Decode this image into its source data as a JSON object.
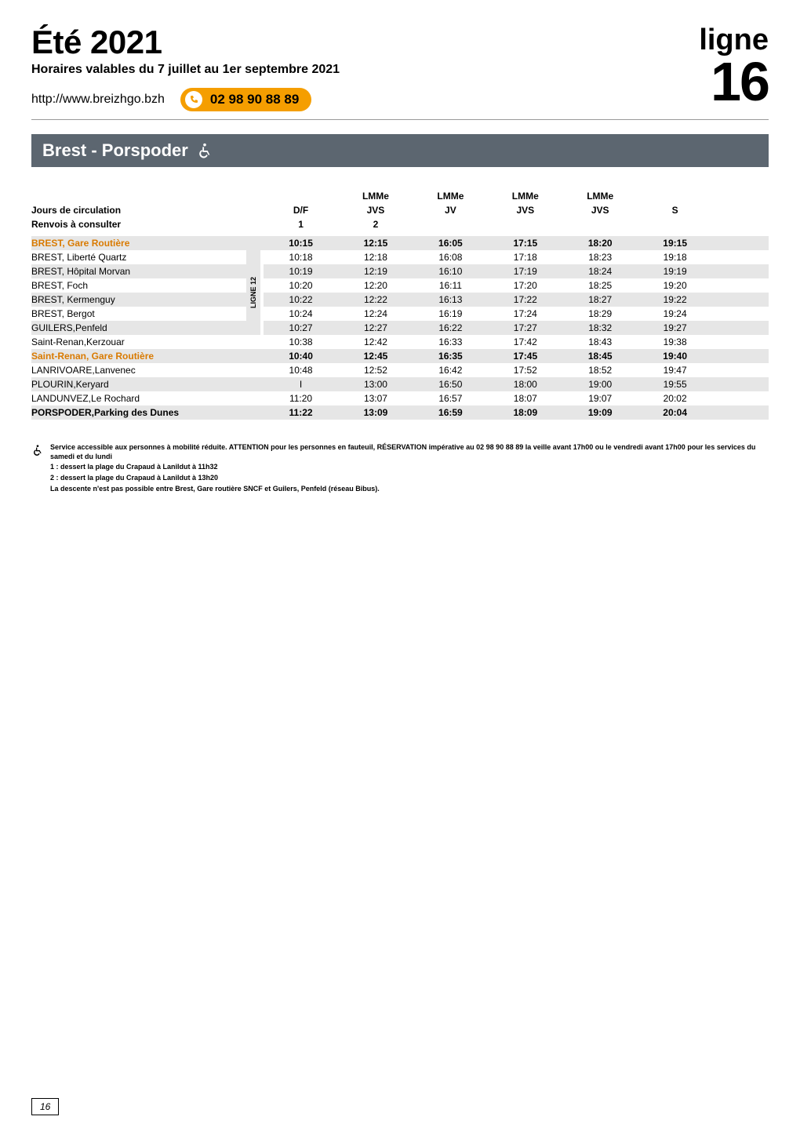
{
  "header": {
    "season": "Été 2021",
    "subtitle": "Horaires valables du 7 juillet au 1er septembre 2021",
    "url": "http://www.breizhgo.bzh",
    "phone": "02 98 90 88 89",
    "ligne_label": "ligne",
    "ligne_number": "16"
  },
  "route_bar": {
    "title": "Brest - Porspoder"
  },
  "table": {
    "jours_label": "Jours de circulation",
    "renvois_label": "Renvois à consulter",
    "header_line1": [
      "",
      "LMMe",
      "LMMe",
      "LMMe",
      "LMMe",
      ""
    ],
    "header_line2": [
      "D/F",
      "JVS",
      "JV",
      "JVS",
      "JVS",
      "S"
    ],
    "renvois_values": [
      "1",
      "2",
      "",
      "",
      "",
      ""
    ],
    "ligne12_label": "LIGNE 12",
    "rows": [
      {
        "stop": "BREST, Gare Routière",
        "times": [
          "10:15",
          "12:15",
          "16:05",
          "17:15",
          "18:20",
          "19:15"
        ],
        "style": "grey orange"
      },
      {
        "stop": "BREST, Liberté Quartz",
        "times": [
          "10:18",
          "12:18",
          "16:08",
          "17:18",
          "18:23",
          "19:18"
        ],
        "style": "",
        "l12": true
      },
      {
        "stop": "BREST, Hôpital Morvan",
        "times": [
          "10:19",
          "12:19",
          "16:10",
          "17:19",
          "18:24",
          "19:19"
        ],
        "style": "grey",
        "l12": true
      },
      {
        "stop": "BREST, Foch",
        "times": [
          "10:20",
          "12:20",
          "16:11",
          "17:20",
          "18:25",
          "19:20"
        ],
        "style": "",
        "l12": true
      },
      {
        "stop": "BREST, Kermenguy",
        "times": [
          "10:22",
          "12:22",
          "16:13",
          "17:22",
          "18:27",
          "19:22"
        ],
        "style": "grey",
        "l12": true
      },
      {
        "stop": "BREST, Bergot",
        "times": [
          "10:24",
          "12:24",
          "16:19",
          "17:24",
          "18:29",
          "19:24"
        ],
        "style": "",
        "l12": true
      },
      {
        "stop": "GUILERS,Penfeld",
        "times": [
          "10:27",
          "12:27",
          "16:22",
          "17:27",
          "18:32",
          "19:27"
        ],
        "style": "grey",
        "l12": true
      },
      {
        "stop": "Saint-Renan,Kerzouar",
        "times": [
          "10:38",
          "12:42",
          "16:33",
          "17:42",
          "18:43",
          "19:38"
        ],
        "style": ""
      },
      {
        "stop": "Saint-Renan, Gare Routière",
        "times": [
          "10:40",
          "12:45",
          "16:35",
          "17:45",
          "18:45",
          "19:40"
        ],
        "style": "grey orange"
      },
      {
        "stop": "LANRIVOARE,Lanvenec",
        "times": [
          "10:48",
          "12:52",
          "16:42",
          "17:52",
          "18:52",
          "19:47"
        ],
        "style": ""
      },
      {
        "stop": "PLOURIN,Keryard",
        "times": [
          "I",
          "13:00",
          "16:50",
          "18:00",
          "19:00",
          "19:55"
        ],
        "style": "grey"
      },
      {
        "stop": "LANDUNVEZ,Le Rochard",
        "times": [
          "11:20",
          "13:07",
          "16:57",
          "18:07",
          "19:07",
          "20:02"
        ],
        "style": ""
      },
      {
        "stop": "PORSPODER,Parking des Dunes",
        "times": [
          "11:22",
          "13:09",
          "16:59",
          "18:09",
          "19:09",
          "20:04"
        ],
        "style": "grey bold"
      }
    ]
  },
  "footnotes": {
    "accessible": "Service accessible aux personnes à mobilité réduite. ATTENTION pour les personnes en fauteuil, RÉSERVATION impérative au 02 98 90 88 89 la veille avant 17h00 ou le vendredi avant 17h00 pour les services du samedi et du lundi",
    "n1": "1 : dessert la plage du Crapaud à Lanildut à 11h32",
    "n2": "2 : dessert la plage du Crapaud à Lanildut à 13h20",
    "n3": "La descente n'est pas possible entre Brest, Gare routière SNCF et Guilers, Penfeld (réseau Bibus)."
  },
  "page_number": "16"
}
